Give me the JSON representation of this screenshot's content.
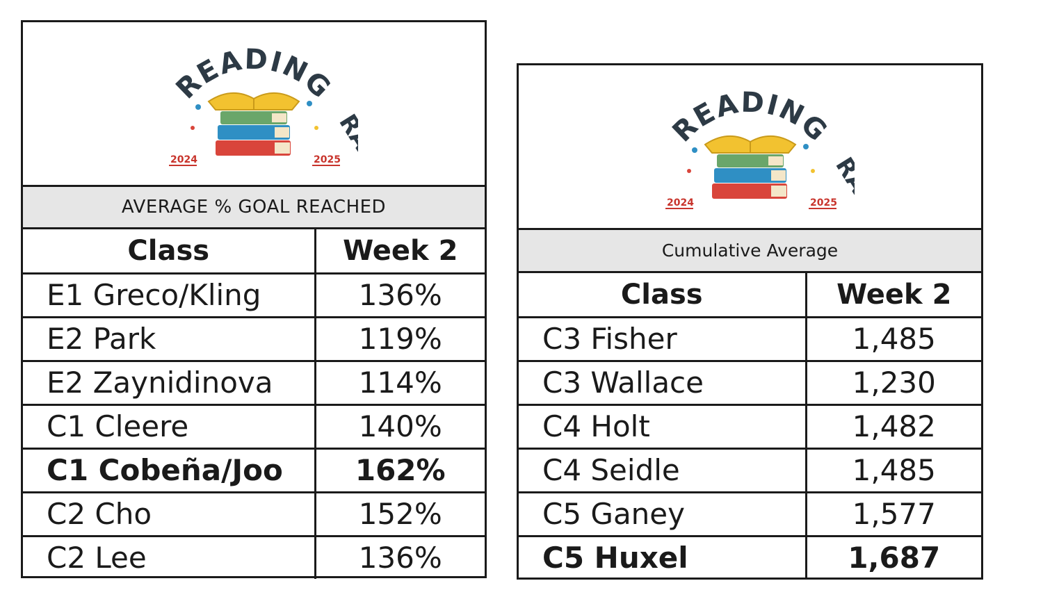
{
  "logo": {
    "title_word1": "READING",
    "title_word2": "RALLY",
    "year_start": "2024",
    "year_end": "2025"
  },
  "colors": {
    "border": "#1a1a1a",
    "band_bg": "#e6e6e6",
    "logo_text": "#2d3a45",
    "year_red": "#c8342c",
    "book_red": "#d9453b",
    "book_blue": "#2f8fc4",
    "book_green": "#6aa66a",
    "book_yellow": "#f2c230"
  },
  "left_table": {
    "heading": "AVERAGE % GOAL REACHED",
    "columns": [
      "Class",
      "Week 2"
    ],
    "rows": [
      {
        "class": "E1 Greco/Kling",
        "week2": "136%",
        "bold": false
      },
      {
        "class": "E2 Park",
        "week2": "119%",
        "bold": false
      },
      {
        "class": "E2 Zaynidinova",
        "week2": "114%",
        "bold": false
      },
      {
        "class": "C1 Cleere",
        "week2": "140%",
        "bold": false
      },
      {
        "class": "C1 Cobeña/Joo",
        "week2": "162%",
        "bold": true
      },
      {
        "class": "C2 Cho",
        "week2": "152%",
        "bold": false
      },
      {
        "class": "C2 Lee",
        "week2": "136%",
        "bold": false
      }
    ]
  },
  "right_table": {
    "heading": "Cumulative Average",
    "columns": [
      "Class",
      "Week 2"
    ],
    "rows": [
      {
        "class": "C3 Fisher",
        "week2": "1,485",
        "bold": false
      },
      {
        "class": "C3 Wallace",
        "week2": "1,230",
        "bold": false
      },
      {
        "class": "C4 Holt",
        "week2": "1,482",
        "bold": false
      },
      {
        "class": "C4 Seidle",
        "week2": "1,485",
        "bold": false
      },
      {
        "class": "C5 Ganey",
        "week2": "1,577",
        "bold": false
      },
      {
        "class": "C5 Huxel",
        "week2": "1,687",
        "bold": true
      }
    ]
  }
}
